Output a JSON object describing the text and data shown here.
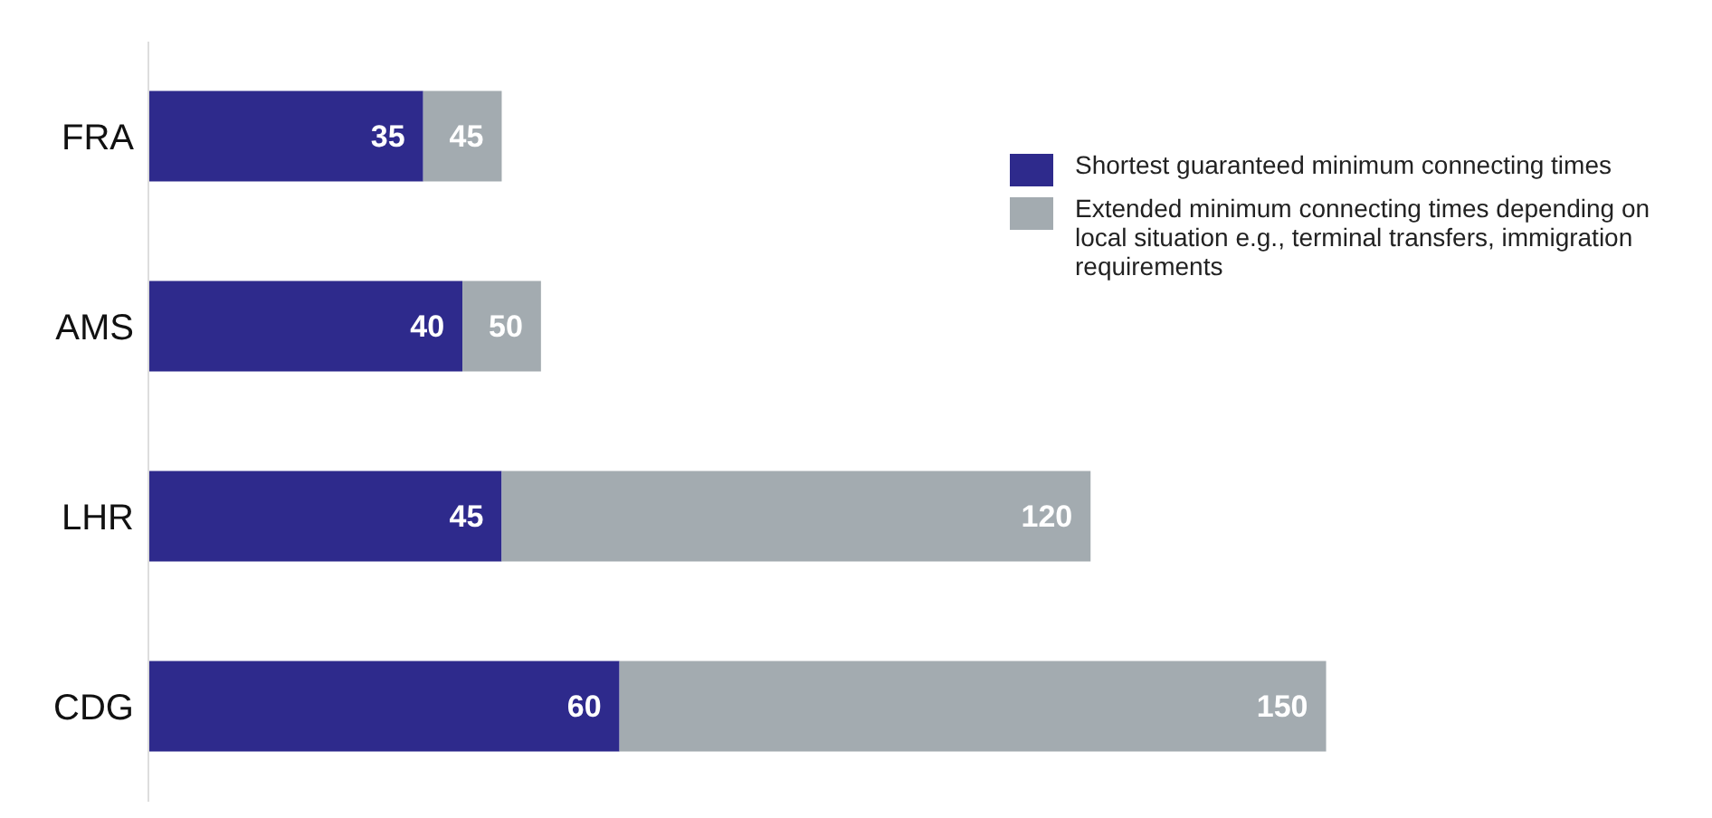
{
  "chart_data": {
    "type": "bar",
    "orientation": "horizontal",
    "stacked": true,
    "categories": [
      "FRA",
      "AMS",
      "LHR",
      "CDG"
    ],
    "series": [
      {
        "name": "Shortest guaranteed minimum connecting times",
        "color": "#2e2a8c",
        "values": [
          35,
          40,
          45,
          60
        ],
        "value_labels": [
          "35",
          "40",
          "45",
          "60"
        ]
      },
      {
        "name": "Extended minimum connecting times depending on local situation e.g., terminal transfers, immigration requirements",
        "color": "#a3abb0",
        "values": [
          10,
          10,
          75,
          90
        ]
      }
    ],
    "totals": [
      "45",
      "50",
      "120",
      "150"
    ],
    "legend": "top right",
    "grid": false,
    "tick_labels": "y"
  }
}
